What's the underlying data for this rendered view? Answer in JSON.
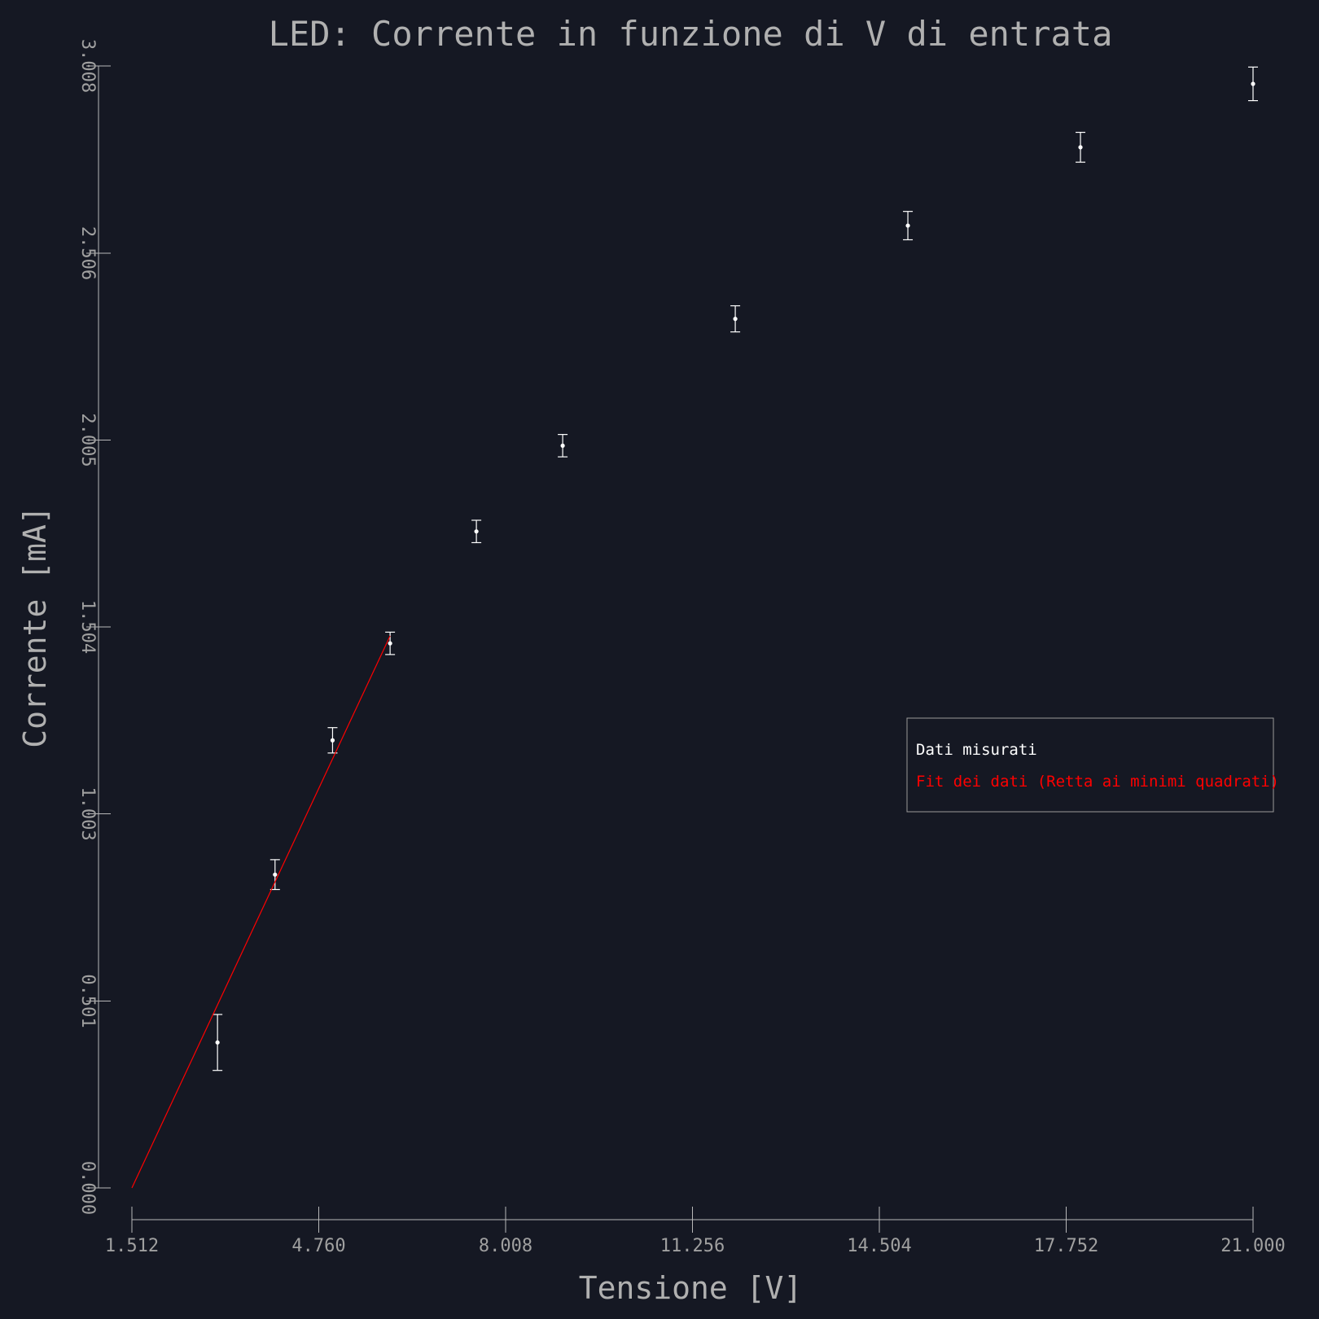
{
  "chart_data": {
    "type": "scatter",
    "title": "LED: Corrente in funzione di V di entrata",
    "xlabel": "Tensione [V]",
    "ylabel": "Corrente [mA]",
    "xlim": [
      1.512,
      21.0
    ],
    "ylim": [
      0.0,
      3.008
    ],
    "x_ticks": [
      "1.512",
      "4.760",
      "8.008",
      "11.256",
      "14.504",
      "17.752",
      "21.000"
    ],
    "y_ticks": [
      "0.000",
      "0.501",
      "1.003",
      "1.504",
      "2.005",
      "2.506",
      "3.008"
    ],
    "grid": false,
    "legend_position": "center-right",
    "series": [
      {
        "name": "Dati misurati",
        "kind": "errorbar",
        "color": "#ffffff",
        "x": [
          3.0,
          4.0,
          5.0,
          6.0,
          7.5,
          9.0,
          12.0,
          15.0,
          18.0,
          21.0
        ],
        "y": [
          0.39,
          0.84,
          1.2,
          1.46,
          1.76,
          1.99,
          2.33,
          2.58,
          2.79,
          2.96
        ],
        "yerr": [
          0.075,
          0.04,
          0.034,
          0.03,
          0.03,
          0.03,
          0.035,
          0.038,
          0.04,
          0.045
        ]
      },
      {
        "name": "Fit dei dati (Retta ai minimi quadrati)",
        "kind": "line",
        "color": "#ff0000",
        "x": [
          1.512,
          6.0
        ],
        "y": [
          0.0,
          1.48
        ]
      }
    ]
  }
}
